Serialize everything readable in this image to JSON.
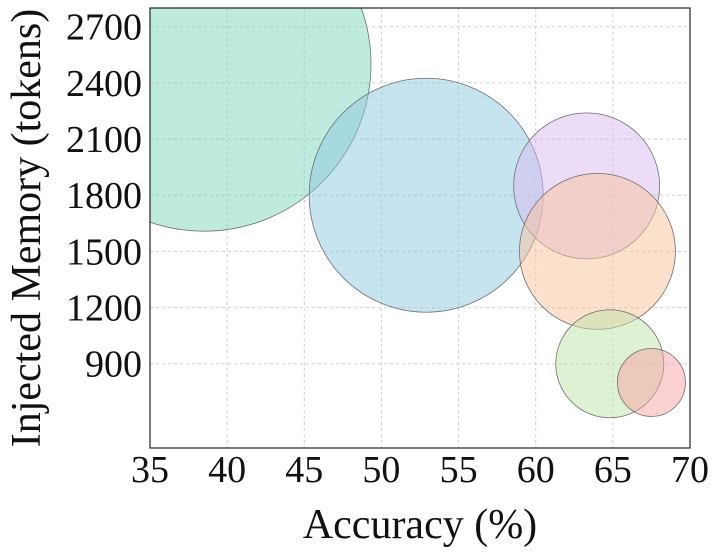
{
  "chart_data": {
    "type": "scatter",
    "title": "",
    "xlabel": "Accuracy (%)",
    "ylabel": "Injected Memory (tokens)",
    "xlim": [
      35,
      70
    ],
    "ylim": [
      450,
      2800
    ],
    "xticks": [
      35,
      40,
      45,
      50,
      55,
      60,
      65,
      70
    ],
    "yticks": [
      900,
      1200,
      1500,
      1800,
      2100,
      2400,
      2700
    ],
    "grid": true,
    "legend": "none",
    "series": [
      {
        "x": 38.5,
        "y": 2500,
        "color": "#7fd6bd",
        "opacity": 0.5
      },
      {
        "x": 52.9,
        "y": 1800,
        "color": "#8ec9e2",
        "opacity": 0.5
      },
      {
        "x": 63.3,
        "y": 1850,
        "color": "#d8b9ef",
        "opacity": 0.5
      },
      {
        "x": 64.0,
        "y": 1500,
        "color": "#f9c49c",
        "opacity": 0.5
      },
      {
        "x": 64.8,
        "y": 900,
        "color": "#bfe3a7",
        "opacity": 0.5
      },
      {
        "x": 67.5,
        "y": 800,
        "color": "#f8a4a4",
        "opacity": 0.5
      }
    ]
  }
}
